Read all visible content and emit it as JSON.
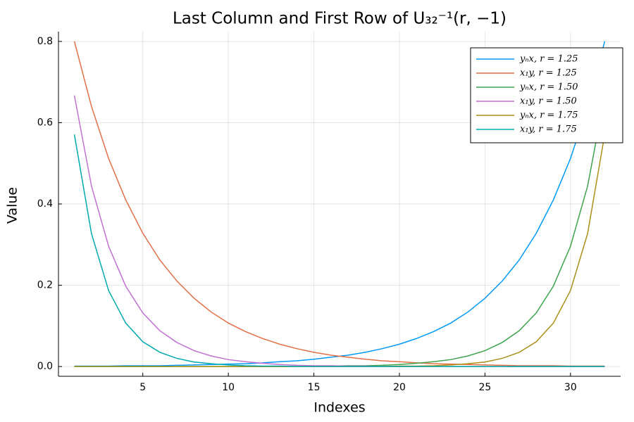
{
  "chart_data": {
    "type": "line",
    "title": "Last Column and First Row of U₃₂⁻¹(r, −1)",
    "x_label": "Indexes",
    "y_label": "Value",
    "x": [
      1,
      2,
      3,
      4,
      5,
      6,
      7,
      8,
      9,
      10,
      11,
      12,
      13,
      14,
      15,
      16,
      17,
      18,
      19,
      20,
      21,
      22,
      23,
      24,
      25,
      26,
      27,
      28,
      29,
      30,
      31,
      32
    ],
    "series": [
      {
        "name": "yₙx, r = 1.25",
        "color": "#009afa",
        "values": [
          0.001,
          0.001,
          0.001,
          0.002,
          0.002,
          0.002,
          0.003,
          0.004,
          0.005,
          0.006,
          0.007,
          0.009,
          0.012,
          0.014,
          0.018,
          0.023,
          0.028,
          0.035,
          0.044,
          0.055,
          0.069,
          0.086,
          0.107,
          0.134,
          0.168,
          0.21,
          0.262,
          0.328,
          0.41,
          0.512,
          0.64,
          0.8
        ]
      },
      {
        "name": "x₁y, r = 1.25",
        "color": "#e36f47",
        "values": [
          0.8,
          0.64,
          0.512,
          0.41,
          0.328,
          0.262,
          0.21,
          0.168,
          0.134,
          0.107,
          0.086,
          0.069,
          0.055,
          0.044,
          0.035,
          0.028,
          0.023,
          0.018,
          0.014,
          0.012,
          0.009,
          0.007,
          0.006,
          0.005,
          0.004,
          0.003,
          0.002,
          0.002,
          0.002,
          0.001,
          0.001,
          0.001
        ]
      },
      {
        "name": "yₙx, r = 1.50",
        "color": "#3ea44e",
        "values": [
          0,
          0,
          0,
          0,
          0,
          0,
          0,
          0,
          0,
          0,
          0,
          0,
          0,
          0,
          0.001,
          0.001,
          0.002,
          0.002,
          0.003,
          0.005,
          0.008,
          0.012,
          0.017,
          0.026,
          0.039,
          0.059,
          0.088,
          0.132,
          0.198,
          0.296,
          0.444,
          0.667
        ]
      },
      {
        "name": "x₁y, r = 1.50",
        "color": "#c271d2",
        "values": [
          0.667,
          0.444,
          0.296,
          0.198,
          0.132,
          0.088,
          0.059,
          0.039,
          0.026,
          0.017,
          0.012,
          0.008,
          0.005,
          0.003,
          0.002,
          0.002,
          0.001,
          0.001,
          0,
          0,
          0,
          0,
          0,
          0,
          0,
          0,
          0,
          0,
          0,
          0,
          0,
          0
        ]
      },
      {
        "name": "yₙx, r = 1.75",
        "color": "#ac8e18",
        "values": [
          0,
          0,
          0,
          0,
          0,
          0,
          0,
          0,
          0,
          0,
          0,
          0,
          0,
          0,
          0,
          0,
          0,
          0,
          0,
          0.001,
          0.001,
          0.002,
          0.004,
          0.007,
          0.011,
          0.02,
          0.035,
          0.061,
          0.107,
          0.187,
          0.327,
          0.571
        ]
      },
      {
        "name": "x₁y, r = 1.75",
        "color": "#00aaae",
        "values": [
          0.571,
          0.327,
          0.187,
          0.107,
          0.061,
          0.035,
          0.02,
          0.011,
          0.007,
          0.004,
          0.002,
          0.001,
          0.001,
          0,
          0,
          0,
          0,
          0,
          0,
          0,
          0,
          0,
          0,
          0,
          0,
          0,
          0,
          0,
          0,
          0,
          0,
          0
        ]
      }
    ],
    "xlim": [
      0.07,
      32.93
    ],
    "ylim": [
      -0.024,
      0.824
    ],
    "xticks": [
      5,
      10,
      15,
      20,
      25,
      30
    ],
    "yticks": [
      {
        "value": 0,
        "label": "0.0"
      },
      0.2,
      0.4,
      0.6,
      0.8
    ],
    "grid": true,
    "legend": "top-right"
  }
}
